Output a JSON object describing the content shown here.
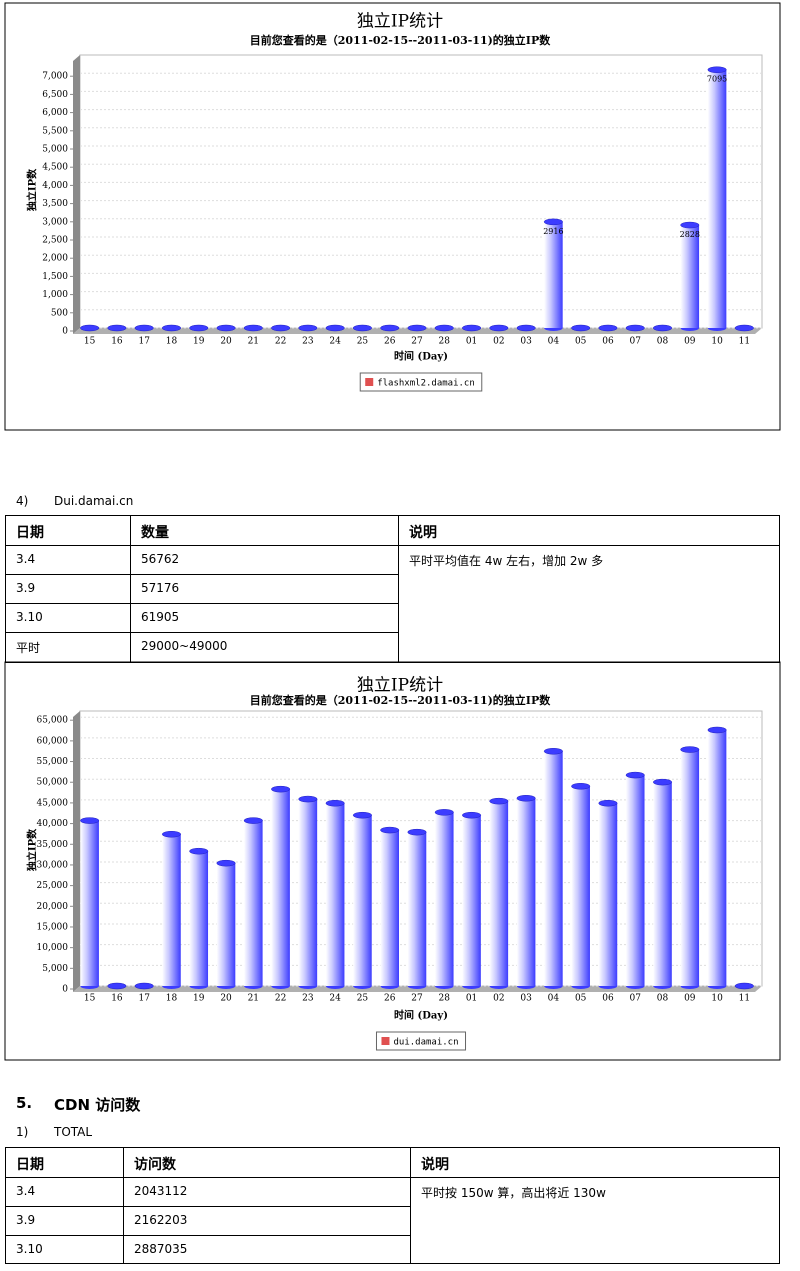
{
  "chart_data": [
    {
      "type": "bar",
      "title": "独立IP统计",
      "subtitle": "目前您查看的是（2011-02-15--2011-03-11)的独立IP数",
      "x_label": "时间 (Day)",
      "y_label": "独立IP数",
      "color": "#3c3cff",
      "categories": [
        "15",
        "16",
        "17",
        "18",
        "19",
        "20",
        "21",
        "22",
        "23",
        "24",
        "25",
        "26",
        "27",
        "28",
        "01",
        "02",
        "03",
        "04",
        "05",
        "06",
        "07",
        "08",
        "09",
        "10",
        "11"
      ],
      "series": [
        {
          "name": "flashxml2.damai.cn",
          "color": "#e05050",
          "values": [
            0,
            0,
            0,
            0,
            0,
            0,
            0,
            0,
            0,
            0,
            0,
            0,
            0,
            0,
            0,
            0,
            0,
            2916,
            0,
            0,
            0,
            0,
            2828,
            7095,
            0
          ]
        }
      ],
      "data_labels": true,
      "ylim": [
        0,
        7500
      ],
      "yticks": [
        0,
        500,
        {
          "value": 1000,
          "label": "1,000"
        },
        {
          "value": 1500,
          "label": "1,500"
        },
        {
          "value": 2000,
          "label": "2,000"
        },
        {
          "value": 2500,
          "label": "2,500"
        },
        {
          "value": 3000,
          "label": "3,000"
        },
        {
          "value": 3500,
          "label": "3,500"
        },
        {
          "value": 4000,
          "label": "4,000"
        },
        {
          "value": 4500,
          "label": "4,500"
        },
        {
          "value": 5000,
          "label": "5,000"
        },
        {
          "value": 5500,
          "label": "5,500"
        },
        {
          "value": 6000,
          "label": "6,000"
        },
        {
          "value": 6500,
          "label": "6,500"
        },
        {
          "value": 7000,
          "label": "7,000"
        }
      ],
      "grid": true
    },
    {
      "type": "bar",
      "title": "独立IP统计",
      "subtitle": "目前您查看的是（2011-02-15--2011-03-11)的独立IP数",
      "x_label": "时间 (Day)",
      "y_label": "独立IP数",
      "color": "#3c3cff",
      "categories": [
        "15",
        "16",
        "17",
        "18",
        "19",
        "20",
        "21",
        "22",
        "23",
        "24",
        "25",
        "26",
        "27",
        "28",
        "01",
        "02",
        "03",
        "04",
        "05",
        "06",
        "07",
        "08",
        "09",
        "10",
        "11"
      ],
      "series": [
        {
          "name": "dui.damai.cn",
          "color": "#e05050",
          "values": [
            40000,
            0,
            0,
            36700,
            32600,
            29700,
            40000,
            47600,
            45200,
            44200,
            41300,
            37700,
            37200,
            42000,
            41300,
            44700,
            45400,
            56762,
            48300,
            44200,
            51000,
            49300,
            57176,
            61905,
            0
          ]
        }
      ],
      "data_labels": false,
      "ylim": [
        0,
        66500
      ],
      "yticks": [
        0,
        {
          "value": 5000,
          "label": "5,000"
        },
        {
          "value": 10000,
          "label": "10,000"
        },
        {
          "value": 15000,
          "label": "15,000"
        },
        {
          "value": 20000,
          "label": "20,000"
        },
        {
          "value": 25000,
          "label": "25,000"
        },
        {
          "value": 30000,
          "label": "30,000"
        },
        {
          "value": 35000,
          "label": "35,000"
        },
        {
          "value": 40000,
          "label": "40,000"
        },
        {
          "value": 45000,
          "label": "45,000"
        },
        {
          "value": 50000,
          "label": "50,000"
        },
        {
          "value": 55000,
          "label": "55,000"
        },
        {
          "value": 60000,
          "label": "60,000"
        },
        {
          "value": 65000,
          "label": "65,000"
        }
      ],
      "grid": true
    }
  ],
  "section4": {
    "number": "4)",
    "title": "Dui.damai.cn",
    "table": {
      "header": [
        "日期",
        "数量",
        "说明"
      ],
      "rows": [
        [
          "3.4",
          "56762"
        ],
        [
          "3.9",
          "57176"
        ],
        [
          "3.10",
          "61905"
        ],
        [
          "平时",
          "29000~49000"
        ]
      ],
      "note": "平时平均值在 4w 左右，增加 2w 多"
    }
  },
  "section5": {
    "number": "5.",
    "title": "CDN 访问数",
    "sub_number": "1)",
    "sub_title": "TOTAL",
    "table": {
      "header": [
        "日期",
        "访问数",
        "说明"
      ],
      "rows": [
        [
          "3.4",
          "2043112"
        ],
        [
          "3.9",
          "2162203"
        ],
        [
          "3.10",
          "2887035"
        ]
      ],
      "note": "平时按 150w 算，高出将近 130w"
    }
  }
}
